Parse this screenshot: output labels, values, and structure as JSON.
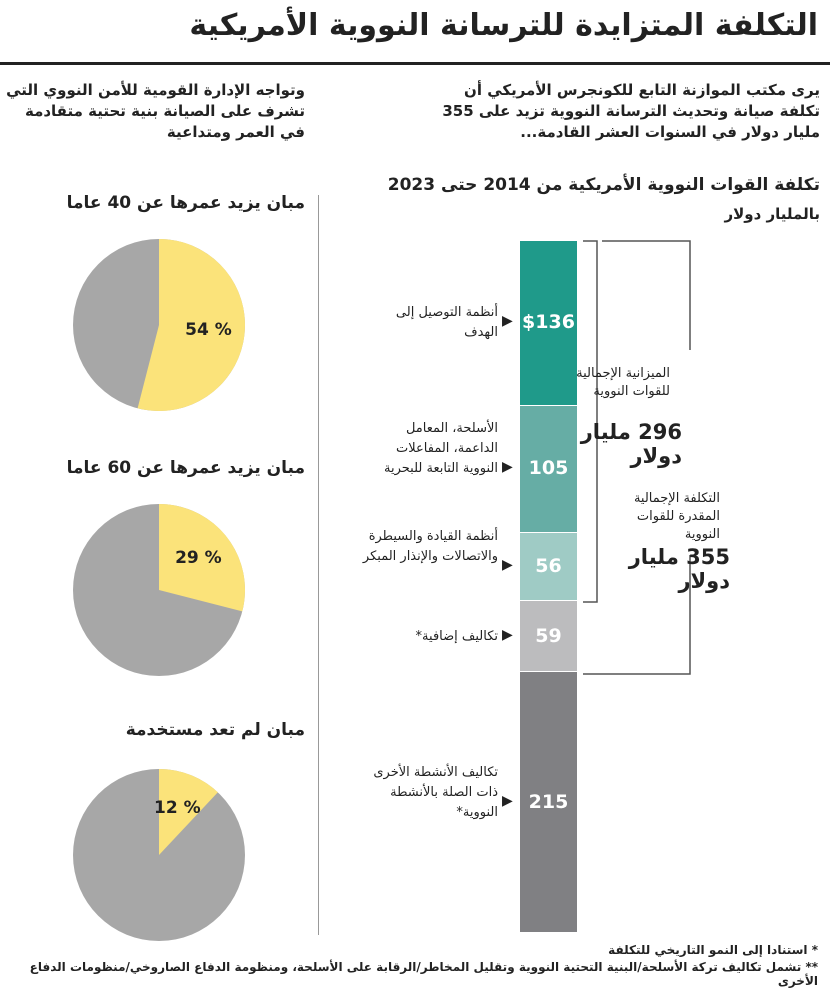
{
  "title": "التكلفة المتزايدة للترسانة النووية الأمريكية",
  "intro_right": "يرى مكتب الموازنة التابع للكونجرس الأمريكي أن تكلفة صيانة وتحديث الترسانة النووية تزيد على 355 مليار دولار في السنوات العشر القادمة...",
  "intro_left": "وتواجه الإدارة القومية للأمن النووي التي تشرف على الصيانة بنية تحتية متقادمة في العمر ومتداعية",
  "chart_data": [
    {
      "type": "bar",
      "title": "تكلفة القوات النووية الأمريكية من 2014 حتى 2023",
      "ylabel": "بالمليار دولار",
      "categories": [
        "أنظمة التوصيل إلى الهدف",
        "الأسلحة، المعامل الداعمة، المفاعلات النووية التابعة للبحرية",
        "أنظمة القيادة والسيطرة والاتصالات والإنذار المبكر",
        "تكاليف إضافية*",
        "تكاليف الأنشطة الأخرى ذات الصلة بالأنشطة النووية*"
      ],
      "values": [
        136,
        105,
        56,
        59,
        215
      ],
      "value_labels": [
        "$136",
        "105",
        "56",
        "59",
        "215"
      ],
      "colors": [
        "#1f9a8a",
        "#66ada5",
        "#9fcbc5",
        "#bcbcbe",
        "#808083"
      ],
      "brackets": [
        {
          "text": "الميزانية الإجمالية للقوات النووية",
          "amount": "296 مليار دولار"
        },
        {
          "text": "التكلفة الإجمالية المقدرة للقوات النووية",
          "amount": "355 مليار دولار"
        }
      ]
    },
    {
      "type": "pie",
      "title": "مبان يزيد عمرها عن 40 عاما",
      "value": 54,
      "label": "% 54"
    },
    {
      "type": "pie",
      "title": "مبان يزيد عمرها عن 60 عاما",
      "value": 29,
      "label": "% 29"
    },
    {
      "type": "pie",
      "title": "مبان لم تعد مستخدمة",
      "value": 12,
      "label": "% 12"
    }
  ],
  "colors": {
    "pie_yes": "#fbe37a",
    "pie_no": "#a7a7a7"
  },
  "footnotes": [
    "* استنادا إلى النمو التاريخي للتكلفة",
    "** تشمل تكاليف تركة الأسلحة/البنية التحتية النووية وتقليل المخاطر/الرقابة على الأسلحة، ومنظومة الدفاع الصاروخي/منظومات الدفاع الأخرى"
  ]
}
